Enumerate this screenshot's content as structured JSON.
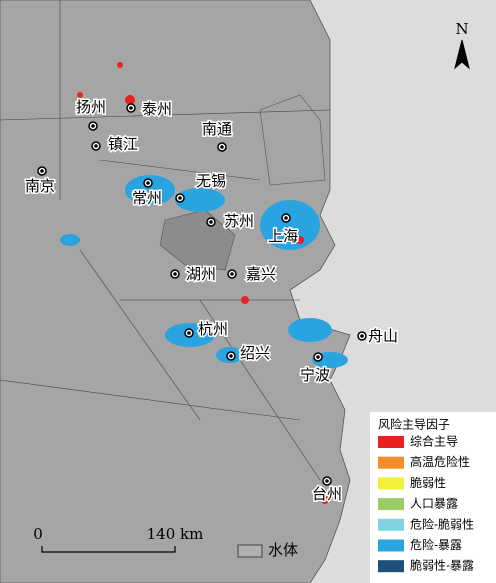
{
  "map": {
    "north": "N",
    "cities": [
      "扬州",
      "泰州",
      "南通",
      "镇江",
      "南京",
      "无锡",
      "常州",
      "苏州",
      "上海",
      "湖州",
      "嘉兴",
      "杭州",
      "绍兴",
      "宁波",
      "舟山",
      "台州"
    ],
    "legend": {
      "title": "风险主导因子",
      "items": [
        {
          "label": "综合主导",
          "color": "#e8221e"
        },
        {
          "label": "高温危险性",
          "color": "#f58d2b"
        },
        {
          "label": "脆弱性",
          "color": "#f0f03a"
        },
        {
          "label": "人口暴露",
          "color": "#9ccc65"
        },
        {
          "label": "危险-脆弱性",
          "color": "#7fd3e0"
        },
        {
          "label": "危险-暴露",
          "color": "#2aa4e0"
        },
        {
          "label": "脆弱性-暴露",
          "color": "#1c4f7a"
        }
      ]
    },
    "scale": {
      "start": "0",
      "end": "140 km"
    },
    "water": {
      "label": "水体",
      "color": "#b0b0b0"
    }
  }
}
